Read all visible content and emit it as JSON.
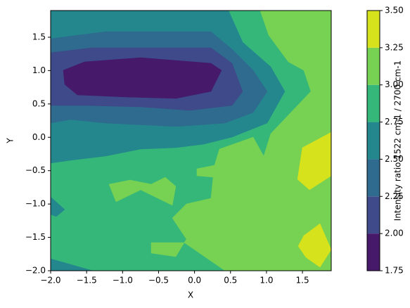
{
  "chart_data": {
    "type": "contourf",
    "xlabel": "X",
    "ylabel": "Y",
    "colorbar_label": "Intensity ratio 1522 cm-1 / 2700 cm-1",
    "xlim": [
      -2,
      1.9
    ],
    "ylim": [
      -2,
      1.9
    ],
    "xticks": [
      {
        "value": -2,
        "label": "−2.0"
      },
      {
        "value": -1.5,
        "label": "−1.5"
      },
      {
        "value": -1,
        "label": "−1.0"
      },
      {
        "value": -0.5,
        "label": "−0.5"
      },
      {
        "value": 0,
        "label": "0.0"
      },
      {
        "value": 0.5,
        "label": "0.5"
      },
      {
        "value": 1,
        "label": "1.0"
      },
      {
        "value": 1.5,
        "label": "1.5"
      }
    ],
    "yticks": [
      {
        "value": -2,
        "label": "−2.0"
      },
      {
        "value": -1.5,
        "label": "−1.5"
      },
      {
        "value": -1,
        "label": "−1.0"
      },
      {
        "value": -0.5,
        "label": "−0.5"
      },
      {
        "value": 0,
        "label": "0.0"
      },
      {
        "value": 0.5,
        "label": "0.5"
      },
      {
        "value": 1,
        "label": "1.0"
      },
      {
        "value": 1.5,
        "label": "1.5"
      }
    ],
    "levels": [
      1.75,
      2,
      2.25,
      2.5,
      2.75,
      3,
      3.25,
      3.5
    ],
    "colors": [
      "#46196b",
      "#3e4a89",
      "#2f6b8e",
      "#24878e",
      "#35b779",
      "#77d153",
      "#d5e21c"
    ],
    "cticks": [
      1.75,
      {
        "value": 2,
        "label": "2.00"
      },
      2.25,
      {
        "value": 2.5,
        "label": "2.50"
      },
      2.75,
      {
        "value": 3,
        "label": "3.00"
      },
      3.25,
      {
        "value": 3.5,
        "label": "3.50"
      }
    ]
  }
}
